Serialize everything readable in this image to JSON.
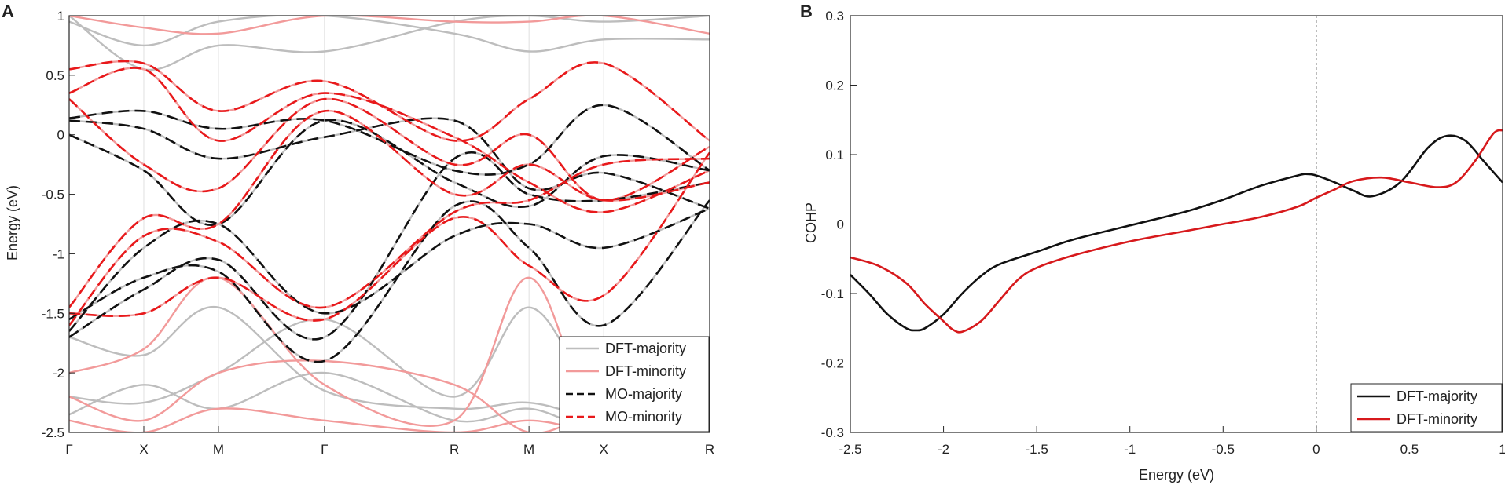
{
  "chart_data": [
    {
      "panel": "A",
      "type": "line",
      "title": "",
      "xlabel": "",
      "ylabel": "Energy (eV)",
      "ylim": [
        -2.5,
        1
      ],
      "yticks": [
        1,
        0.5,
        0,
        -0.5,
        -1,
        -1.5,
        -2,
        -2.5
      ],
      "ytick_labels": [
        "1",
        "0.5",
        "0",
        "-0.5",
        "-1",
        "-1.5",
        "-2",
        "-2.5"
      ],
      "kpath": [
        {
          "label": "Γ",
          "k": 0
        },
        {
          "label": "X",
          "k": 0.5
        },
        {
          "label": "M",
          "k": 1.0
        },
        {
          "label": "Γ",
          "k": 1.71
        },
        {
          "label": "R",
          "k": 2.58
        },
        {
          "label": "M",
          "k": 3.08
        },
        {
          "label": "X",
          "k": 3.58
        },
        {
          "label": "R",
          "k": 4.29
        }
      ],
      "xlim": [
        0,
        4.29
      ],
      "legend": {
        "location": "bottom-right",
        "entries": [
          "DFT-majority",
          "DFT-minority",
          "MO-majority",
          "MO-minority"
        ]
      },
      "series": [
        {
          "name": "DFT-majority",
          "color": "#bdbdbd",
          "dash": "solid",
          "bands": [
            [
              0.12,
              0.05,
              -0.2,
              -0.02,
              0.12,
              -0.45,
              -0.32,
              -0.62
            ],
            [
              0.14,
              0.2,
              0.05,
              0.12,
              -0.3,
              -0.25,
              0.25,
              -0.3
            ],
            [
              -1.7,
              -1.3,
              -1.05,
              -1.7,
              -0.2,
              -0.5,
              -0.55,
              -0.4
            ],
            [
              -1.65,
              -0.95,
              -0.75,
              -1.5,
              -0.85,
              -0.75,
              -0.95,
              -0.62
            ],
            [
              -1.55,
              -1.2,
              -1.15,
              -1.9,
              -0.6,
              -0.95,
              -1.6,
              -0.55
            ],
            [
              0.0,
              -0.3,
              -0.75,
              0.12,
              -0.4,
              -0.6,
              -0.18,
              -0.3
            ],
            [
              -1.7,
              -1.85,
              -1.45,
              -2.15,
              -2.3,
              -2.25,
              -2.4,
              -2.5
            ],
            [
              -2.2,
              -2.25,
              -2.0,
              -1.55,
              -2.2,
              -1.45,
              -2.25,
              -2.5
            ],
            [
              -2.35,
              -2.1,
              -2.3,
              -2.0,
              -2.4,
              -2.3,
              -2.5,
              -2.5
            ],
            [
              0.95,
              0.75,
              0.95,
              1.0,
              0.85,
              0.7,
              0.8,
              0.8
            ],
            [
              1.0,
              0.55,
              0.75,
              0.7,
              0.95,
              1.0,
              0.95,
              1.0
            ]
          ]
        },
        {
          "name": "DFT-minority",
          "color": "#f29a9a",
          "dash": "solid",
          "bands": [
            [
              0.55,
              0.6,
              0.2,
              0.45,
              -0.05,
              0.3,
              0.6,
              -0.05
            ],
            [
              0.35,
              0.55,
              -0.05,
              0.35,
              -0.02,
              -0.4,
              -0.65,
              -0.3
            ],
            [
              0.3,
              -0.25,
              -0.45,
              0.3,
              -0.25,
              0.0,
              -0.55,
              -0.1
            ],
            [
              -1.45,
              -0.7,
              -0.75,
              0.2,
              -0.5,
              -0.25,
              -0.55,
              -0.4
            ],
            [
              -1.5,
              -1.5,
              -1.2,
              -1.55,
              -0.7,
              -1.1,
              -1.35,
              -0.15
            ],
            [
              -1.6,
              -0.85,
              -0.9,
              -1.45,
              -0.65,
              -0.55,
              -0.25,
              -0.2
            ],
            [
              -2.0,
              -1.8,
              -1.2,
              -2.1,
              -2.4,
              -1.2,
              -2.5,
              -2.5
            ],
            [
              -2.2,
              -2.4,
              -2.0,
              -1.9,
              -2.1,
              -2.5,
              -2.35,
              -2.5
            ],
            [
              -2.4,
              -2.5,
              -2.3,
              -2.4,
              -2.5,
              -2.4,
              -2.5,
              -2.5
            ],
            [
              1.0,
              0.9,
              0.85,
              1.0,
              0.95,
              0.95,
              1.0,
              0.85
            ]
          ]
        },
        {
          "name": "MO-majority",
          "color": "#111111",
          "dash": "dashed",
          "bands": [
            [
              0.12,
              0.05,
              -0.2,
              -0.02,
              0.12,
              -0.45,
              -0.32,
              -0.62
            ],
            [
              0.14,
              0.2,
              0.05,
              0.12,
              -0.3,
              -0.25,
              0.25,
              -0.3
            ],
            [
              -1.7,
              -1.3,
              -1.05,
              -1.7,
              -0.2,
              -0.5,
              -0.55,
              -0.4
            ],
            [
              -1.65,
              -0.95,
              -0.75,
              -1.5,
              -0.85,
              -0.75,
              -0.95,
              -0.62
            ],
            [
              -1.55,
              -1.2,
              -1.15,
              -1.9,
              -0.6,
              -0.95,
              -1.6,
              -0.55
            ],
            [
              0.0,
              -0.3,
              -0.75,
              0.12,
              -0.4,
              -0.6,
              -0.18,
              -0.3
            ]
          ]
        },
        {
          "name": "MO-minority",
          "color": "#e8191b",
          "dash": "dashed",
          "bands": [
            [
              0.55,
              0.6,
              0.2,
              0.45,
              -0.05,
              0.3,
              0.6,
              -0.05
            ],
            [
              0.35,
              0.55,
              -0.05,
              0.35,
              -0.02,
              -0.4,
              -0.65,
              -0.3
            ],
            [
              0.3,
              -0.25,
              -0.45,
              0.3,
              -0.25,
              0.0,
              -0.55,
              -0.1
            ],
            [
              -1.45,
              -0.7,
              -0.75,
              0.2,
              -0.5,
              -0.25,
              -0.55,
              -0.4
            ],
            [
              -1.5,
              -1.5,
              -1.2,
              -1.55,
              -0.7,
              -1.1,
              -1.35,
              -0.15
            ],
            [
              -1.6,
              -0.85,
              -0.9,
              -1.45,
              -0.65,
              -0.55,
              -0.25,
              -0.2
            ]
          ]
        }
      ]
    },
    {
      "panel": "B",
      "type": "line",
      "title": "",
      "xlabel": "Energy (eV)",
      "ylabel": "COHP",
      "xlim": [
        -2.5,
        1
      ],
      "ylim": [
        -0.3,
        0.3
      ],
      "xticks": [
        -2.5,
        -2,
        -1.5,
        -1,
        -0.5,
        0,
        0.5,
        1
      ],
      "xtick_labels": [
        "-2.5",
        "-2",
        "-1.5",
        "-1",
        "-0.5",
        "0",
        "0.5",
        "1"
      ],
      "yticks": [
        0.3,
        0.2,
        0.1,
        0,
        -0.1,
        -0.2,
        -0.3
      ],
      "ytick_labels": [
        "0.3",
        "0.2",
        "0.1",
        "0",
        "-0.1",
        "-0.2",
        "-0.3"
      ],
      "reference_lines": {
        "x": 0,
        "y": 0
      },
      "legend": {
        "location": "bottom-right",
        "entries": [
          "DFT-majority",
          "DFT-minority"
        ]
      },
      "series": [
        {
          "name": "DFT-majority",
          "color": "#111111",
          "x": [
            -2.5,
            -2.4,
            -2.3,
            -2.2,
            -2.15,
            -2.1,
            -2.0,
            -1.9,
            -1.8,
            -1.7,
            -1.5,
            -1.3,
            -1.0,
            -0.7,
            -0.5,
            -0.3,
            -0.1,
            -0.05,
            0.0,
            0.1,
            0.2,
            0.3,
            0.45,
            0.6,
            0.7,
            0.8,
            0.9,
            1.0
          ],
          "y": [
            -0.073,
            -0.1,
            -0.13,
            -0.15,
            -0.153,
            -0.15,
            -0.13,
            -0.1,
            -0.075,
            -0.058,
            -0.04,
            -0.022,
            -0.002,
            0.018,
            0.035,
            0.055,
            0.07,
            0.072,
            0.07,
            0.06,
            0.048,
            0.04,
            0.06,
            0.11,
            0.127,
            0.12,
            0.09,
            0.06
          ]
        },
        {
          "name": "DFT-minority",
          "color": "#d7191c",
          "x": [
            -2.5,
            -2.35,
            -2.2,
            -2.1,
            -2.0,
            -1.95,
            -1.9,
            -1.8,
            -1.7,
            -1.6,
            -1.5,
            -1.3,
            -1.0,
            -0.7,
            -0.5,
            -0.3,
            -0.1,
            0.0,
            0.1,
            0.2,
            0.35,
            0.5,
            0.65,
            0.75,
            0.85,
            0.95,
            1.0
          ],
          "y": [
            -0.048,
            -0.06,
            -0.085,
            -0.115,
            -0.14,
            -0.152,
            -0.155,
            -0.14,
            -0.11,
            -0.08,
            -0.063,
            -0.045,
            -0.025,
            -0.01,
            0.0,
            0.01,
            0.025,
            0.038,
            0.05,
            0.062,
            0.067,
            0.06,
            0.053,
            0.06,
            0.09,
            0.13,
            0.135
          ]
        }
      ]
    }
  ],
  "panels": {
    "A": {
      "label": "A"
    },
    "B": {
      "label": "B"
    }
  }
}
